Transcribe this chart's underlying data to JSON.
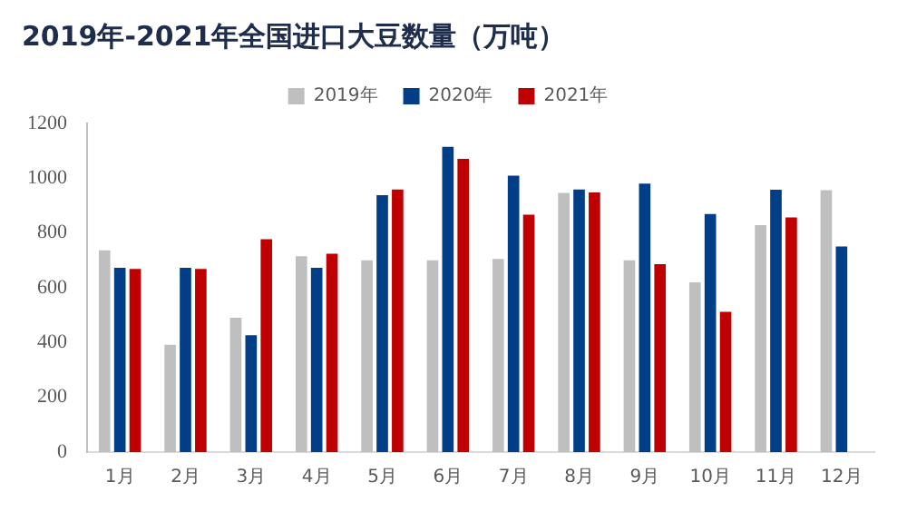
{
  "chart_data": {
    "type": "bar",
    "title": "2019年-2021年全国进口大豆数量（万吨）",
    "categories": [
      "1月",
      "2月",
      "3月",
      "4月",
      "5月",
      "6月",
      "7月",
      "8月",
      "9月",
      "10月",
      "11月",
      "12月"
    ],
    "series": [
      {
        "name": "2019年",
        "color": "#bfbfbf",
        "values": [
          737,
          392,
          491,
          715,
          700,
          700,
          705,
          946,
          700,
          620,
          829,
          956
        ]
      },
      {
        "name": "2020年",
        "color": "#003f87",
        "values": [
          673,
          673,
          427,
          673,
          938,
          1115,
          1009,
          959,
          980,
          869,
          958,
          751
        ]
      },
      {
        "name": "2021年",
        "color": "#c00000",
        "values": [
          669,
          669,
          777,
          724,
          959,
          1071,
          867,
          948,
          686,
          512,
          857,
          null
        ]
      }
    ],
    "ylim": [
      0,
      1200
    ],
    "yticks": [
      0,
      200,
      400,
      600,
      800,
      1000,
      1200
    ],
    "grid": false,
    "legend": "top"
  }
}
